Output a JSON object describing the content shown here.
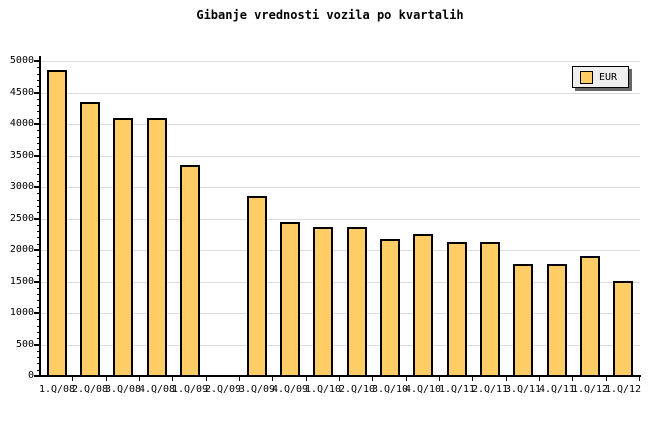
{
  "title": "Gibanje vrednosti vozila po kvartalih",
  "legend": {
    "label": "EUR",
    "swatch_color": "#ffcc66"
  },
  "chart_data": {
    "type": "bar",
    "title": "Gibanje vrednosti vozila po kvartalih",
    "categories": [
      "1.Q/08",
      "2.Q/08",
      "3.Q/08",
      "4.Q/08",
      "1.Q/09",
      "2.Q/09",
      "3.Q/09",
      "4.Q/09",
      "1.Q/10",
      "2.Q/10",
      "3.Q/10",
      "4.Q/10",
      "1.Q/11",
      "2.Q/11",
      "3.Q/11",
      "4.Q/11",
      "1.Q/12",
      "1.Q/12"
    ],
    "values": [
      4850,
      4350,
      4100,
      4100,
      3350,
      null,
      2850,
      2450,
      2370,
      2370,
      2170,
      2250,
      2120,
      2120,
      1780,
      1780,
      1900,
      1500
    ],
    "missing_category": "2.Q/09",
    "xlabel": "",
    "ylabel": "",
    "ylim": [
      0,
      5000
    ],
    "ytick_step": 500,
    "ytick_minor_step": 100,
    "ytick_labels": [
      "0",
      "500",
      "1000",
      "1500",
      "2000",
      "2500",
      "3000",
      "3500",
      "4000",
      "4500",
      "5000"
    ],
    "grid": "horizontal",
    "legend_entries": [
      "EUR"
    ],
    "legend_position": "top-right",
    "bar_color": "#ffcc66",
    "bar_border_color": "#000000",
    "grid_color": "#dcdcdc",
    "axis_color": "#000000",
    "background": "#ffffff"
  }
}
